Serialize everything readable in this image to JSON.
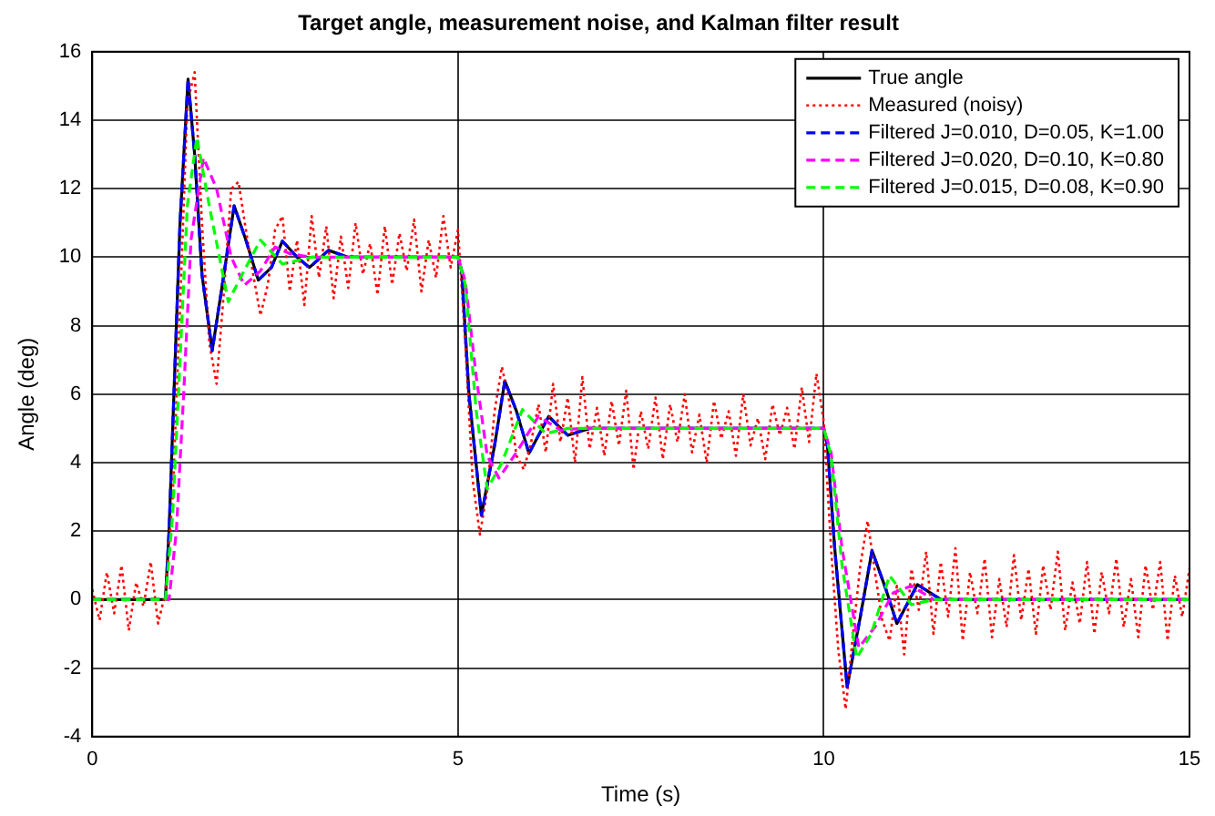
{
  "chart_data": {
    "type": "line",
    "title": "Target angle, measurement noise, and Kalman filter result",
    "xlabel": "Time (s)",
    "ylabel": "Angle (deg)",
    "xlim": [
      0,
      15
    ],
    "xticks": [
      0,
      5,
      10,
      15
    ],
    "ylim": [
      -4,
      16
    ],
    "yticks": [
      -4,
      -2,
      0,
      2,
      4,
      6,
      8,
      10,
      12,
      14,
      16
    ],
    "grid": true,
    "legend": "top right",
    "marker": "none",
    "series": [
      {
        "name": "True angle",
        "color": "#000000",
        "line_style": "solid",
        "x": [
          0,
          1.0,
          1.05,
          1.1,
          1.2,
          1.31,
          1.4,
          1.5,
          1.64,
          1.8,
          1.94,
          2.1,
          2.27,
          2.45,
          2.6,
          2.8,
          2.97,
          3.23,
          3.5,
          5.0,
          5.05,
          5.15,
          5.32,
          5.5,
          5.64,
          5.8,
          5.97,
          6.24,
          6.5,
          6.8,
          10.0,
          10.05,
          10.15,
          10.32,
          10.5,
          10.66,
          10.85,
          11.0,
          11.28,
          11.6,
          15
        ],
        "values": [
          0,
          0,
          2,
          5,
          11,
          15.2,
          13,
          9.5,
          7.27,
          9.5,
          11.5,
          10.5,
          9.33,
          9.7,
          10.47,
          10,
          9.7,
          10.2,
          10,
          10,
          9.6,
          6,
          2.46,
          4.5,
          6.39,
          5.5,
          4.27,
          5.35,
          4.8,
          5,
          5,
          4.5,
          1.5,
          -2.55,
          -0.5,
          1.43,
          0.3,
          -0.7,
          0.44,
          0,
          0
        ]
      },
      {
        "name": "Measured (noisy)",
        "color": "#ff0000",
        "line_style": "dotted",
        "x": [
          0,
          0.1,
          0.2,
          0.3,
          0.4,
          0.5,
          0.6,
          0.7,
          0.8,
          0.9,
          1.0,
          1.1,
          1.2,
          1.3,
          1.4,
          1.5,
          1.6,
          1.7,
          1.8,
          1.9,
          2.0,
          2.1,
          2.2,
          2.3,
          2.4,
          2.5,
          2.6,
          2.7,
          2.8,
          2.9,
          3.0,
          3.1,
          3.2,
          3.3,
          3.4,
          3.5,
          3.6,
          3.7,
          3.8,
          3.9,
          4.0,
          4.1,
          4.2,
          4.3,
          4.4,
          4.5,
          4.6,
          4.7,
          4.8,
          4.9,
          5.0,
          5.1,
          5.2,
          5.3,
          5.4,
          5.5,
          5.6,
          5.7,
          5.8,
          5.9,
          6.0,
          6.1,
          6.2,
          6.3,
          6.4,
          6.5,
          6.6,
          6.7,
          6.8,
          6.9,
          7.0,
          7.1,
          7.2,
          7.3,
          7.4,
          7.5,
          7.6,
          7.7,
          7.8,
          7.9,
          8.0,
          8.1,
          8.2,
          8.3,
          8.4,
          8.5,
          8.6,
          8.7,
          8.8,
          8.9,
          9.0,
          9.1,
          9.2,
          9.3,
          9.4,
          9.5,
          9.6,
          9.7,
          9.8,
          9.9,
          10.0,
          10.1,
          10.2,
          10.3,
          10.4,
          10.5,
          10.6,
          10.7,
          10.8,
          10.9,
          11.0,
          11.1,
          11.2,
          11.3,
          11.4,
          11.5,
          11.6,
          11.7,
          11.8,
          11.9,
          12.0,
          12.1,
          12.2,
          12.3,
          12.4,
          12.5,
          12.6,
          12.7,
          12.8,
          12.9,
          13.0,
          13.1,
          13.2,
          13.3,
          13.4,
          13.5,
          13.6,
          13.7,
          13.8,
          13.9,
          14.0,
          14.1,
          14.2,
          14.3,
          14.4,
          14.5,
          14.6,
          14.7,
          14.8,
          14.9,
          15.0
        ],
        "values": [
          0.3,
          -0.6,
          0.8,
          -0.4,
          1.0,
          -0.9,
          0.5,
          -0.2,
          1.1,
          -0.7,
          0.2,
          3,
          8.5,
          14.5,
          15.4,
          11,
          7.5,
          6.3,
          9,
          12,
          12.2,
          10.8,
          9.5,
          8.3,
          9.2,
          10.8,
          11.2,
          9.0,
          10.5,
          8.6,
          11.2,
          9.4,
          10.9,
          8.8,
          10.6,
          9.1,
          11.0,
          9.5,
          10.4,
          8.9,
          10.9,
          9.2,
          10.7,
          9.6,
          11.1,
          9.0,
          10.5,
          9.4,
          11.2,
          9.7,
          10.8,
          7.5,
          3.5,
          1.9,
          3.2,
          5.5,
          6.8,
          5.8,
          4.2,
          3.8,
          4.6,
          5.7,
          4.3,
          6.3,
          4.6,
          5.9,
          4.0,
          6.5,
          4.4,
          5.6,
          4.2,
          5.8,
          4.5,
          6.1,
          3.8,
          5.5,
          4.4,
          5.9,
          4.1,
          5.7,
          4.6,
          6.0,
          4.3,
          5.4,
          4.0,
          5.8,
          4.7,
          5.5,
          4.2,
          6.0,
          4.5,
          5.3,
          4.1,
          5.7,
          4.8,
          5.6,
          4.4,
          6.2,
          4.6,
          6.6,
          5.2,
          1.5,
          -1.5,
          -3.2,
          -1.0,
          1.0,
          2.3,
          0.8,
          -0.6,
          -1.2,
          0.4,
          -1.6,
          0.9,
          -0.3,
          1.4,
          -1.0,
          1.1,
          -0.5,
          1.5,
          -1.2,
          0.8,
          -0.4,
          1.2,
          -1.1,
          0.6,
          -0.8,
          1.3,
          -0.6,
          0.9,
          -1.0,
          1.0,
          -0.3,
          1.4,
          -0.9,
          0.5,
          -0.7,
          1.1,
          -1.0,
          0.8,
          -0.4,
          1.2,
          -0.8,
          0.6,
          -1.1,
          1.0,
          -0.3,
          1.1,
          -1.2,
          0.7,
          -0.5,
          0.9
        ]
      },
      {
        "name": "Filtered J=0.010, D=0.05, K=1.00",
        "color": "#0000ff",
        "line_style": "dashed",
        "x": [
          0,
          1.0,
          1.05,
          1.1,
          1.2,
          1.31,
          1.4,
          1.5,
          1.64,
          1.8,
          1.94,
          2.1,
          2.27,
          2.45,
          2.6,
          2.8,
          2.97,
          3.23,
          3.5,
          5.0,
          5.05,
          5.15,
          5.32,
          5.5,
          5.64,
          5.8,
          5.97,
          6.24,
          6.5,
          6.8,
          10.0,
          10.05,
          10.15,
          10.32,
          10.5,
          10.66,
          10.85,
          11.0,
          11.28,
          11.6,
          15
        ],
        "values": [
          0,
          0,
          2,
          5,
          11,
          15.2,
          13,
          9.5,
          7.27,
          9.5,
          11.5,
          10.5,
          9.33,
          9.7,
          10.47,
          10,
          9.7,
          10.2,
          10,
          10,
          9.6,
          6,
          2.46,
          4.5,
          6.39,
          5.5,
          4.27,
          5.35,
          4.8,
          5,
          5,
          4.5,
          1.5,
          -2.55,
          -0.5,
          1.43,
          0.3,
          -0.7,
          0.44,
          0,
          0
        ]
      },
      {
        "name": "Filtered J=0.020, D=0.10, K=0.80",
        "color": "#ff00ff",
        "line_style": "dashed",
        "x": [
          0,
          1.05,
          1.15,
          1.25,
          1.35,
          1.52,
          1.7,
          1.9,
          2.08,
          2.3,
          2.5,
          2.7,
          3.0,
          5.0,
          5.1,
          5.25,
          5.4,
          5.56,
          5.8,
          6.1,
          6.4,
          6.7,
          10.0,
          10.1,
          10.25,
          10.48,
          10.7,
          10.95,
          11.2,
          11.5,
          15
        ],
        "values": [
          0,
          0,
          2,
          6,
          10.5,
          12.9,
          12,
          10,
          9.18,
          9.6,
          10.3,
          10.1,
          10,
          10,
          9.3,
          6.5,
          4.2,
          3.55,
          4.3,
          5.35,
          4.95,
          5,
          5,
          4.3,
          1.5,
          -1.4,
          -0.8,
          0.2,
          0.4,
          0,
          0
        ]
      },
      {
        "name": "Filtered J=0.015, D=0.08, K=0.90",
        "color": "#00ff00",
        "line_style": "dashed",
        "x": [
          0,
          1.0,
          1.1,
          1.2,
          1.3,
          1.43,
          1.6,
          1.86,
          2.05,
          2.3,
          2.6,
          3.0,
          5.0,
          5.1,
          5.25,
          5.4,
          5.6,
          5.88,
          6.2,
          6.5,
          10.0,
          10.1,
          10.25,
          10.45,
          10.65,
          10.9,
          11.2,
          11.5,
          15
        ],
        "values": [
          0,
          0,
          2.5,
          7,
          11.5,
          13.5,
          11.5,
          8.7,
          9.5,
          10.5,
          9.8,
          10,
          10,
          9.2,
          5.5,
          3.23,
          4,
          5.55,
          4.85,
          5,
          5,
          4.2,
          1,
          -1.7,
          -1,
          0.7,
          -0.15,
          0,
          0
        ]
      }
    ]
  }
}
